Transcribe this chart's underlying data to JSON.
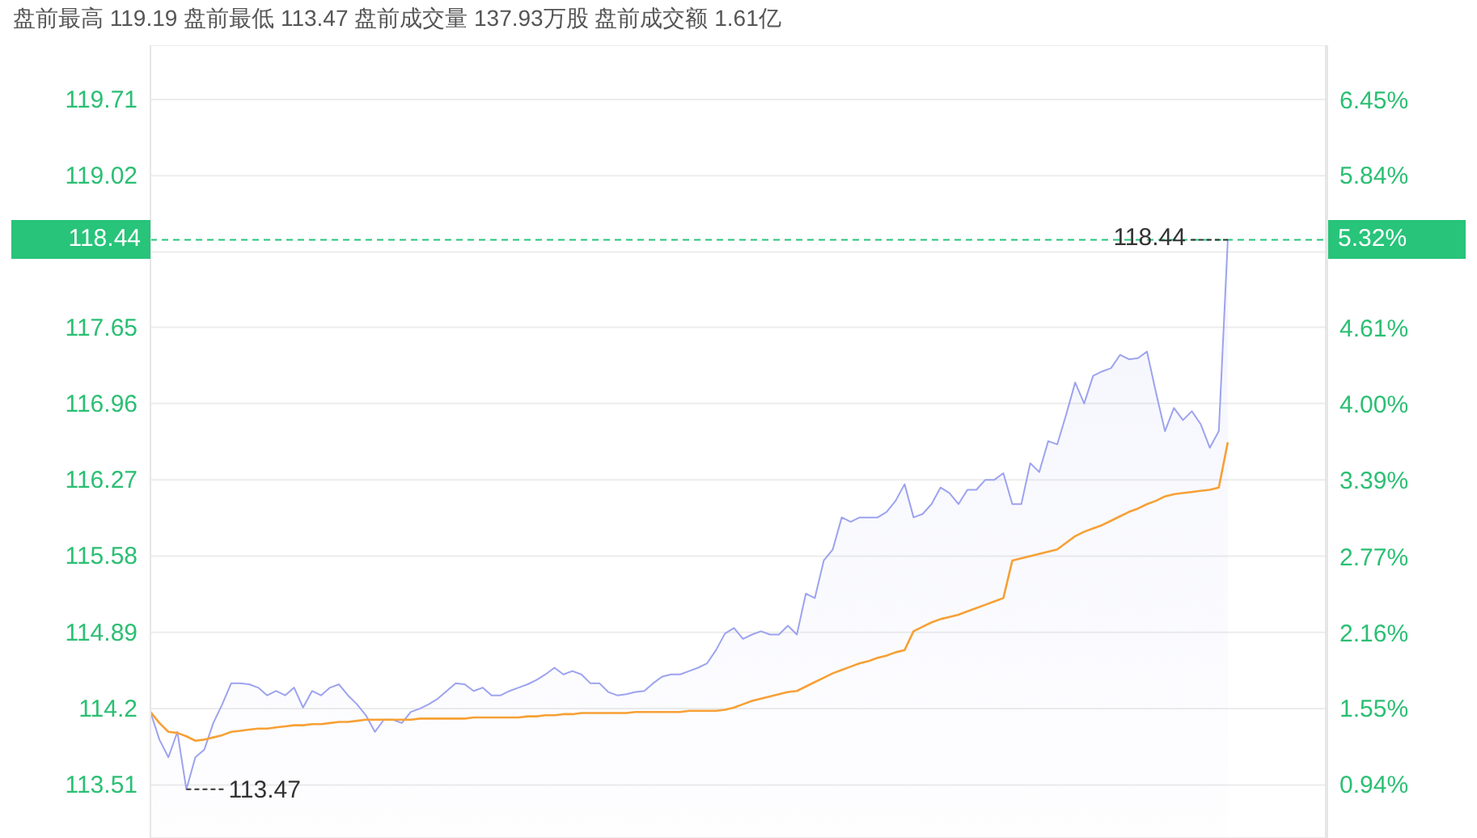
{
  "chart_data": {
    "type": "area",
    "title": "盘前最高 119.19 盘前最低 113.47 盘前成交量 137.93万股 盘前成交额 1.61亿",
    "categories": [
      null,
      null,
      null,
      null,
      null,
      null,
      null,
      null,
      null,
      null,
      null,
      null,
      null,
      null,
      null,
      null,
      null,
      null,
      null,
      null,
      null,
      null,
      null,
      null,
      null,
      null,
      null,
      null,
      null,
      null,
      null,
      null,
      null,
      null,
      null,
      null,
      null,
      null,
      null,
      null,
      null,
      null,
      null,
      null,
      null,
      null,
      null,
      null,
      null,
      null,
      null,
      null,
      null,
      null,
      null,
      null,
      null,
      null,
      null,
      null,
      null,
      null,
      null,
      null,
      null,
      null,
      null,
      null,
      null,
      null,
      null,
      null,
      null,
      null,
      null,
      null,
      null,
      null,
      null,
      null,
      null,
      null,
      null,
      null,
      null,
      null,
      null,
      null,
      null,
      null,
      null,
      null,
      null,
      null,
      null,
      null,
      null,
      null,
      null,
      null,
      null,
      null,
      null,
      null,
      null,
      null,
      null,
      null,
      null,
      null,
      null,
      null,
      null,
      null,
      null,
      null,
      null,
      null,
      null,
      null,
      null
    ],
    "series": [
      {
        "color": "#9da3ee",
        "values": [
          114.17,
          113.92,
          113.76,
          113.99,
          113.47,
          113.76,
          113.83,
          114.07,
          114.24,
          114.43,
          114.43,
          114.42,
          114.39,
          114.32,
          114.36,
          114.32,
          114.39,
          114.21,
          114.36,
          114.32,
          114.39,
          114.42,
          114.32,
          114.24,
          114.14,
          113.99,
          114.1,
          114.1,
          114.07,
          114.17,
          114.2,
          114.24,
          114.29,
          114.36,
          114.43,
          114.42,
          114.36,
          114.39,
          114.32,
          114.32,
          114.36,
          114.39,
          114.42,
          114.46,
          114.51,
          114.57,
          114.51,
          114.54,
          114.51,
          114.43,
          114.43,
          114.35,
          114.32,
          114.33,
          114.35,
          114.36,
          114.43,
          114.49,
          114.51,
          114.51,
          114.54,
          114.57,
          114.61,
          114.73,
          114.88,
          114.93,
          114.83,
          114.87,
          114.9,
          114.87,
          114.87,
          114.95,
          114.87,
          115.24,
          115.2,
          115.54,
          115.64,
          115.93,
          115.89,
          115.93,
          115.93,
          115.93,
          115.98,
          116.08,
          116.23,
          115.93,
          115.96,
          116.05,
          116.2,
          116.15,
          116.05,
          116.18,
          116.18,
          116.27,
          116.27,
          116.33,
          116.05,
          116.05,
          116.42,
          116.34,
          116.62,
          116.59,
          116.86,
          117.15,
          116.96,
          117.21,
          117.25,
          117.28,
          117.4,
          117.36,
          117.37,
          117.43,
          117.06,
          116.71,
          116.92,
          116.81,
          116.89,
          116.77,
          116.56,
          116.71,
          118.44
        ]
      },
      {
        "type": "line",
        "color": "#f7a035",
        "values": [
          114.17,
          114.07,
          113.99,
          113.98,
          113.95,
          113.91,
          113.92,
          113.94,
          113.96,
          113.99,
          114.0,
          114.01,
          114.02,
          114.02,
          114.03,
          114.04,
          114.05,
          114.05,
          114.06,
          114.06,
          114.07,
          114.08,
          114.08,
          114.09,
          114.1,
          114.1,
          114.1,
          114.1,
          114.1,
          114.1,
          114.11,
          114.11,
          114.11,
          114.11,
          114.11,
          114.11,
          114.12,
          114.12,
          114.12,
          114.12,
          114.12,
          114.12,
          114.13,
          114.13,
          114.14,
          114.14,
          114.15,
          114.15,
          114.16,
          114.16,
          114.16,
          114.16,
          114.16,
          114.16,
          114.17,
          114.17,
          114.17,
          114.17,
          114.17,
          114.17,
          114.18,
          114.18,
          114.18,
          114.18,
          114.19,
          114.21,
          114.24,
          114.27,
          114.29,
          114.31,
          114.33,
          114.35,
          114.36,
          114.4,
          114.44,
          114.48,
          114.52,
          114.55,
          114.58,
          114.61,
          114.63,
          114.66,
          114.68,
          114.71,
          114.73,
          114.9,
          114.94,
          114.98,
          115.01,
          115.03,
          115.05,
          115.08,
          115.11,
          115.14,
          115.17,
          115.2,
          115.54,
          115.56,
          115.58,
          115.6,
          115.62,
          115.64,
          115.7,
          115.76,
          115.8,
          115.83,
          115.86,
          115.9,
          115.94,
          115.98,
          116.01,
          116.05,
          116.08,
          116.12,
          116.14,
          116.15,
          116.16,
          116.17,
          116.18,
          116.2,
          116.61
        ]
      }
    ],
    "ylim": [
      113.03,
      120.2
    ],
    "yticks": [
      113.51,
      114.2,
      114.89,
      115.58,
      116.27,
      116.96,
      117.65,
      {
        "value": 118.33,
        "label": null
      },
      119.02,
      119.71
    ],
    "y2lim": [
      0.51,
      6.89
    ],
    "y2ticks": [
      {
        "value": 0.94,
        "label": "0.94%"
      },
      {
        "value": 1.55,
        "label": "1.55%"
      },
      {
        "value": 2.16,
        "label": "2.16%"
      },
      {
        "value": 2.77,
        "label": "2.77%"
      },
      {
        "value": 3.39,
        "label": "3.39%"
      },
      {
        "value": 4.0,
        "label": "4.00%"
      },
      {
        "value": 4.61,
        "label": "4.61%"
      },
      {
        "value": 5.22,
        "label": null
      },
      {
        "value": 5.84,
        "label": "5.84%"
      },
      {
        "value": 6.45,
        "label": "6.45%"
      }
    ],
    "ref_lines": [
      {
        "axis": "y",
        "value": 118.44,
        "label": "118.44",
        "color": "#27c47a",
        "line_style": "dashed"
      }
    ],
    "annotations": [
      {
        "text": "118.44",
        "y": 118.44
      },
      "113.47",
      "5.32%"
    ],
    "grid": true,
    "legend": false,
    "marker": "none",
    "tick_labels": "y"
  }
}
